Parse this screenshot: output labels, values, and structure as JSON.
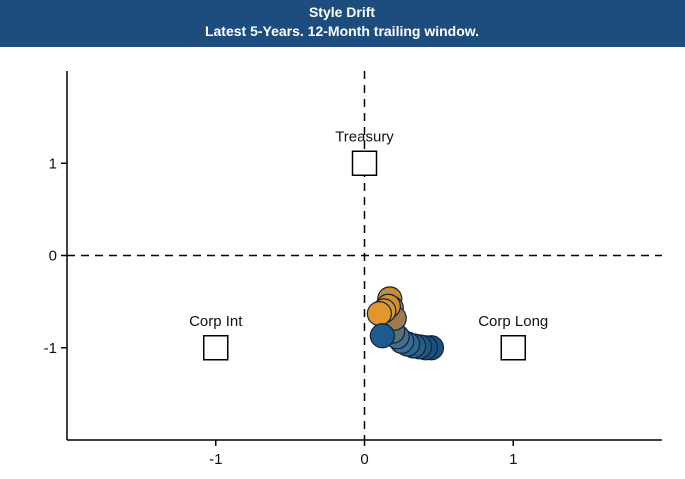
{
  "chart_data": {
    "type": "scatter",
    "title": "Style Drift",
    "subtitle": "Latest 5-Years. 12-Month trailing window.",
    "header_color": "#1c4d7e",
    "xlim": [
      -2,
      2
    ],
    "ylim": [
      -2,
      2
    ],
    "xticks": [
      -1,
      0,
      1
    ],
    "yticks": [
      -1,
      0,
      1
    ],
    "reference_points": [
      {
        "label": "Treasury",
        "x": 0,
        "y": 1
      },
      {
        "label": "Corp Int",
        "x": -1,
        "y": -1
      },
      {
        "label": "Corp Long",
        "x": 1,
        "y": -1
      }
    ],
    "series": [
      {
        "x": [
          0.45,
          0.41,
          0.37,
          0.33,
          0.29,
          0.25,
          0.22,
          0.19,
          0.17,
          0.18,
          0.2,
          0.16,
          0.13,
          0.1,
          0.12
        ],
        "y": [
          -1.0,
          -1.0,
          -0.99,
          -0.98,
          -0.96,
          -0.93,
          -0.88,
          -0.82,
          -0.47,
          -0.57,
          -0.68,
          -0.55,
          -0.6,
          -0.63,
          -0.87
        ],
        "colors": [
          "#1f4f7f",
          "#1f4f7f",
          "#22567f",
          "#2a5e84",
          "#2f6690",
          "#3a6f94",
          "#436f8a",
          "#5b7070",
          "#c98a35",
          "#b9843f",
          "#a07a4f",
          "#d68f30",
          "#de952c",
          "#e0972b",
          "#1f5a8c"
        ]
      }
    ]
  }
}
